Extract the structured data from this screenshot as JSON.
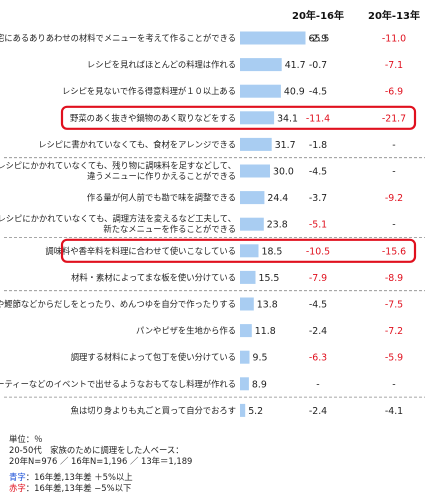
{
  "chart_data": {
    "type": "bar",
    "columns": [
      "20年-16年",
      "20年-13年"
    ],
    "rows": [
      {
        "label": [
          "自宅にあるありあわせの材料でメニューを考えて作ることができる"
        ],
        "value": 65.5,
        "d16": "-2.9",
        "d13": "-11.0",
        "d16_color": "black",
        "d13_color": "red",
        "highlight": false,
        "dash_after": false
      },
      {
        "label": [
          "レシピを見ればほとんどの料理は作れる"
        ],
        "value": 41.7,
        "d16": "-0.7",
        "d13": "-7.1",
        "d16_color": "black",
        "d13_color": "red",
        "highlight": false,
        "dash_after": false
      },
      {
        "label": [
          "レシピを見ないで作る得意料理が１０以上ある"
        ],
        "value": 40.9,
        "d16": "-4.5",
        "d13": "-6.9",
        "d16_color": "black",
        "d13_color": "red",
        "highlight": false,
        "dash_after": false
      },
      {
        "label": [
          "野菜のあく抜きや鍋物のあく取りなどをする"
        ],
        "value": 34.1,
        "d16": "-11.4",
        "d13": "-21.7",
        "d16_color": "red",
        "d13_color": "red",
        "highlight": true,
        "dash_after": false
      },
      {
        "label": [
          "レシピに書かれていなくても、食材をアレンジできる"
        ],
        "value": 31.7,
        "d16": "-1.8",
        "d13": "-",
        "d16_color": "black",
        "d13_color": "black",
        "highlight": false,
        "dash_after": true
      },
      {
        "label": [
          "レシピにかかれていなくても、残り物に調味料を足すなどして、",
          "違うメニューに作りかえることができる"
        ],
        "value": 30.0,
        "d16": "-4.5",
        "d13": "-",
        "d16_color": "black",
        "d13_color": "black",
        "highlight": false,
        "dash_after": false
      },
      {
        "label": [
          "作る量が何人前でも勘で味を調整できる"
        ],
        "value": 24.4,
        "d16": "-3.7",
        "d13": "-9.2",
        "d16_color": "black",
        "d13_color": "red",
        "highlight": false,
        "dash_after": false
      },
      {
        "label": [
          "レシピにかかれていなくても、調理方法を変えるなど工夫して、",
          "新たなメニューを作ることができる"
        ],
        "value": 23.8,
        "d16": "-5.1",
        "d13": "-",
        "d16_color": "red",
        "d13_color": "black",
        "highlight": false,
        "dash_after": true
      },
      {
        "label": [
          "調味料や香辛料を料理に合わせて使いこなしている"
        ],
        "value": 18.5,
        "d16": "-10.5",
        "d13": "-15.6",
        "d16_color": "red",
        "d13_color": "red",
        "highlight": true,
        "dash_after": false
      },
      {
        "label": [
          "材料・素材によってまな板を使い分けている"
        ],
        "value": 15.5,
        "d16": "-7.9",
        "d13": "-8.9",
        "d16_color": "red",
        "d13_color": "red",
        "highlight": false,
        "dash_after": true
      },
      {
        "label": [
          "煮干や鰹節などからだしをとったり、めんつゆを自分で作ったりする"
        ],
        "value": 13.8,
        "d16": "-4.5",
        "d13": "-7.5",
        "d16_color": "black",
        "d13_color": "red",
        "highlight": false,
        "dash_after": false
      },
      {
        "label": [
          "パンやピザを生地から作る"
        ],
        "value": 11.8,
        "d16": "-2.4",
        "d13": "-7.2",
        "d16_color": "black",
        "d13_color": "red",
        "highlight": false,
        "dash_after": false
      },
      {
        "label": [
          "調理する材料によって包丁を使い分けている"
        ],
        "value": 9.5,
        "d16": "-6.3",
        "d13": "-5.9",
        "d16_color": "red",
        "d13_color": "red",
        "highlight": false,
        "dash_after": false
      },
      {
        "label": [
          "ホームパーティーなどのイベントで出せるようなおもてなし料理が作れる"
        ],
        "value": 8.9,
        "d16": "-",
        "d13": "-",
        "d16_color": "black",
        "d13_color": "black",
        "highlight": false,
        "dash_after": true
      },
      {
        "label": [
          "魚は切り身よりも丸ごと買って自分でおろす"
        ],
        "value": 5.2,
        "d16": "-2.4",
        "d13": "-4.1",
        "d16_color": "black",
        "d13_color": "black",
        "highlight": false,
        "dash_after": false
      }
    ],
    "bar_color": "#a9cdf2",
    "highlight_color": "#e0101e",
    "negative_color": "#e0101e",
    "xlim": [
      0,
      100
    ]
  },
  "footer": {
    "unit": "単位：％",
    "base": "20-50代　家族のために調理をした人ベース：",
    "n": "20年N=976 ／ 16年N=1,196 ／ 13年＝1,189",
    "legend_blue_key": "青字",
    "legend_blue_text": "：16年差,13年差 ＋5%以上",
    "legend_red_key": "赤字",
    "legend_red_text": "：16年差,13年差 −5%以下"
  }
}
